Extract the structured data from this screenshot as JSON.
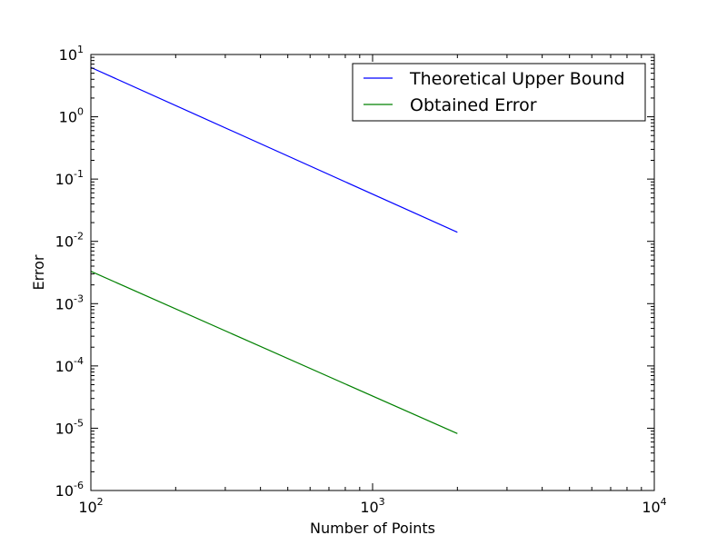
{
  "chart_data": {
    "type": "line",
    "xscale": "log",
    "yscale": "log",
    "xlim": [
      100,
      10000
    ],
    "ylim": [
      1e-06,
      10
    ],
    "xlabel": "Number of Points",
    "ylabel": "Error",
    "x_ticks": [
      {
        "value": 100,
        "base": "10",
        "exp": "2"
      },
      {
        "value": 1000,
        "base": "10",
        "exp": "3"
      },
      {
        "value": 10000,
        "base": "10",
        "exp": "4"
      }
    ],
    "y_ticks": [
      {
        "value": 10,
        "base": "10",
        "exp": "1"
      },
      {
        "value": 1,
        "base": "10",
        "exp": "0"
      },
      {
        "value": 0.1,
        "base": "10",
        "exp": "-1"
      },
      {
        "value": 0.01,
        "base": "10",
        "exp": "-2"
      },
      {
        "value": 0.001,
        "base": "10",
        "exp": "-3"
      },
      {
        "value": 0.0001,
        "base": "10",
        "exp": "-4"
      },
      {
        "value": 1e-05,
        "base": "10",
        "exp": "-5"
      },
      {
        "value": 1e-06,
        "base": "10",
        "exp": "-6"
      }
    ],
    "legend_position": "top-right",
    "grid": false,
    "series": [
      {
        "name": "Theoretical Upper Bound",
        "color": "#0000ff",
        "x": [
          100,
          2000
        ],
        "y": [
          6.2,
          0.014
        ]
      },
      {
        "name": "Obtained Error",
        "color": "#008000",
        "x": [
          100,
          2000
        ],
        "y": [
          0.0033,
          8.2e-06
        ]
      }
    ]
  }
}
